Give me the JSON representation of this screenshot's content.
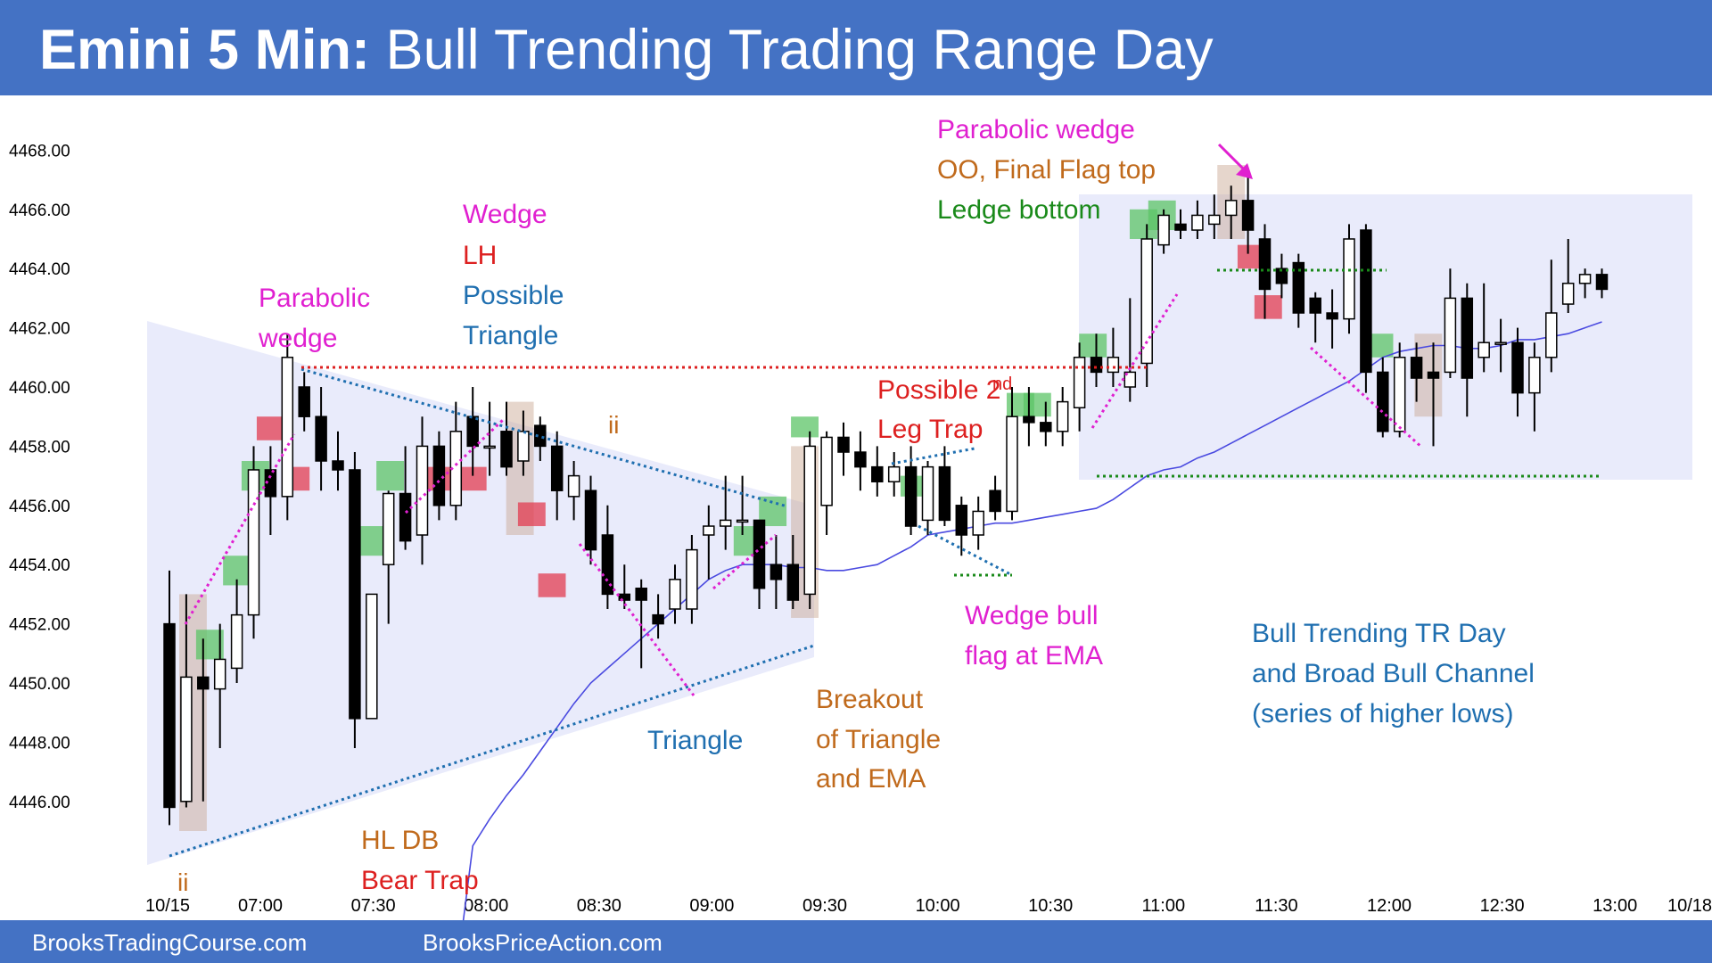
{
  "header": {
    "title_bold": "Emini 5 Min:",
    "title_rest": "Bull Trending Trading Range Day"
  },
  "footer": {
    "left": "BrooksTradingCourse.com",
    "right": "BrooksPriceAction.com"
  },
  "colors": {
    "header_bg": "#4472c4",
    "bull_bar": "#ffffff",
    "bear_bar": "#000000",
    "ema": "#4a4ae0",
    "trendline": "#1f6fb0",
    "wedge": "#e020d0",
    "resistance": "#dd2020",
    "support": "#1a8a1a",
    "bull_signal": "#5cc467",
    "bear_signal": "#e23c50",
    "pause": "#c8a58f"
  },
  "chart_data": {
    "type": "candlestick",
    "title": "Emini 5 Min: Bull Trending Trading Range Day",
    "ylim": [
      4444.8,
      4469.2
    ],
    "yticks": [
      "4446.00",
      "4448.00",
      "4450.00",
      "4452.00",
      "4454.00",
      "4456.00",
      "4458.00",
      "4460.00",
      "4462.00",
      "4464.00",
      "4466.00",
      "4468.00"
    ],
    "xticks": [
      "10/15",
      "07:00",
      "07:30",
      "08:00",
      "08:30",
      "09:00",
      "09:30",
      "10:00",
      "10:30",
      "11:00",
      "11:30",
      "12:00",
      "12:30",
      "13:00",
      "10/18"
    ],
    "bars": [
      {
        "o": 4452.0,
        "h": 4453.8,
        "l": 4445.2,
        "c": 4445.8
      },
      {
        "o": 4446.0,
        "h": 4453.0,
        "l": 4445.8,
        "c": 4450.2
      },
      {
        "o": 4450.2,
        "h": 4451.5,
        "l": 4446.0,
        "c": 4449.8
      },
      {
        "o": 4449.8,
        "h": 4452.0,
        "l": 4447.8,
        "c": 4450.8
      },
      {
        "o": 4450.5,
        "h": 4453.5,
        "l": 4450.0,
        "c": 4452.3
      },
      {
        "o": 4452.3,
        "h": 4458.0,
        "l": 4451.5,
        "c": 4457.2
      },
      {
        "o": 4457.2,
        "h": 4458.0,
        "l": 4455.0,
        "c": 4456.3
      },
      {
        "o": 4456.3,
        "h": 4461.8,
        "l": 4455.5,
        "c": 4461.0
      },
      {
        "o": 4460.0,
        "h": 4460.5,
        "l": 4458.5,
        "c": 4459.0
      },
      {
        "o": 4459.0,
        "h": 4460.0,
        "l": 4456.5,
        "c": 4457.5
      },
      {
        "o": 4457.5,
        "h": 4458.5,
        "l": 4456.5,
        "c": 4457.2
      },
      {
        "o": 4457.2,
        "h": 4457.8,
        "l": 4447.8,
        "c": 4448.8
      },
      {
        "o": 4448.8,
        "h": 4453.0,
        "l": 4448.8,
        "c": 4453.0
      },
      {
        "o": 4454.0,
        "h": 4456.5,
        "l": 4452.0,
        "c": 4456.4
      },
      {
        "o": 4456.4,
        "h": 4458.0,
        "l": 4454.5,
        "c": 4454.8
      },
      {
        "o": 4455.0,
        "h": 4459.0,
        "l": 4454.0,
        "c": 4458.0
      },
      {
        "o": 4458.0,
        "h": 4458.5,
        "l": 4455.5,
        "c": 4456.0
      },
      {
        "o": 4456.0,
        "h": 4459.5,
        "l": 4455.5,
        "c": 4458.5
      },
      {
        "o": 4459.0,
        "h": 4460.0,
        "l": 4457.0,
        "c": 4458.0
      },
      {
        "o": 4458.0,
        "h": 4459.5,
        "l": 4457.0,
        "c": 4458.0
      },
      {
        "o": 4458.5,
        "h": 4459.5,
        "l": 4457.0,
        "c": 4457.3
      },
      {
        "o": 4457.5,
        "h": 4459.2,
        "l": 4457.0,
        "c": 4458.5
      },
      {
        "o": 4458.7,
        "h": 4459.0,
        "l": 4457.5,
        "c": 4458.0
      },
      {
        "o": 4458.0,
        "h": 4458.5,
        "l": 4455.5,
        "c": 4456.5
      },
      {
        "o": 4456.3,
        "h": 4457.5,
        "l": 4455.5,
        "c": 4457.0
      },
      {
        "o": 4456.5,
        "h": 4457.0,
        "l": 4454.0,
        "c": 4454.5
      },
      {
        "o": 4455.0,
        "h": 4456.0,
        "l": 4452.5,
        "c": 4453.0
      },
      {
        "o": 4453.0,
        "h": 4454.0,
        "l": 4452.5,
        "c": 4452.8
      },
      {
        "o": 4453.2,
        "h": 4453.5,
        "l": 4450.5,
        "c": 4452.8
      },
      {
        "o": 4452.3,
        "h": 4453.0,
        "l": 4451.5,
        "c": 4452.0
      },
      {
        "o": 4452.5,
        "h": 4454.0,
        "l": 4452.0,
        "c": 4453.5
      },
      {
        "o": 4452.5,
        "h": 4455.0,
        "l": 4452.0,
        "c": 4454.5
      },
      {
        "o": 4455.0,
        "h": 4456.0,
        "l": 4453.5,
        "c": 4455.3
      },
      {
        "o": 4455.3,
        "h": 4457.0,
        "l": 4454.5,
        "c": 4455.5
      },
      {
        "o": 4455.5,
        "h": 4457.0,
        "l": 4455.0,
        "c": 4455.5
      },
      {
        "o": 4455.5,
        "h": 4455.5,
        "l": 4452.5,
        "c": 4453.2
      },
      {
        "o": 4454.0,
        "h": 4455.0,
        "l": 4452.5,
        "c": 4453.5
      },
      {
        "o": 4454.0,
        "h": 4455.0,
        "l": 4452.5,
        "c": 4452.8
      },
      {
        "o": 4453.0,
        "h": 4458.5,
        "l": 4452.5,
        "c": 4458.0
      },
      {
        "o": 4456.0,
        "h": 4458.5,
        "l": 4455.0,
        "c": 4458.3
      },
      {
        "o": 4458.3,
        "h": 4458.8,
        "l": 4457.0,
        "c": 4457.8
      },
      {
        "o": 4457.8,
        "h": 4458.5,
        "l": 4456.5,
        "c": 4457.3
      },
      {
        "o": 4457.3,
        "h": 4458.0,
        "l": 4456.3,
        "c": 4456.8
      },
      {
        "o": 4456.8,
        "h": 4457.8,
        "l": 4456.3,
        "c": 4457.3
      },
      {
        "o": 4457.3,
        "h": 4458.0,
        "l": 4455.0,
        "c": 4455.3
      },
      {
        "o": 4455.5,
        "h": 4457.5,
        "l": 4455.0,
        "c": 4457.3
      },
      {
        "o": 4457.3,
        "h": 4458.0,
        "l": 4455.3,
        "c": 4455.5
      },
      {
        "o": 4456.0,
        "h": 4456.3,
        "l": 4454.3,
        "c": 4455.0
      },
      {
        "o": 4455.0,
        "h": 4456.3,
        "l": 4454.5,
        "c": 4455.8
      },
      {
        "o": 4456.5,
        "h": 4457.0,
        "l": 4455.5,
        "c": 4455.8
      },
      {
        "o": 4455.8,
        "h": 4460.0,
        "l": 4455.5,
        "c": 4459.0
      },
      {
        "o": 4459.0,
        "h": 4460.0,
        "l": 4458.0,
        "c": 4458.8
      },
      {
        "o": 4458.8,
        "h": 4459.5,
        "l": 4458.0,
        "c": 4458.5
      },
      {
        "o": 4458.5,
        "h": 4460.0,
        "l": 4458.0,
        "c": 4459.5
      },
      {
        "o": 4459.3,
        "h": 4461.5,
        "l": 4458.5,
        "c": 4461.0
      },
      {
        "o": 4461.0,
        "h": 4461.8,
        "l": 4460.0,
        "c": 4460.5
      },
      {
        "o": 4460.5,
        "h": 4462.0,
        "l": 4460.0,
        "c": 4461.0
      },
      {
        "o": 4460.0,
        "h": 4463.0,
        "l": 4459.5,
        "c": 4460.5
      },
      {
        "o": 4460.8,
        "h": 4465.5,
        "l": 4460.0,
        "c": 4465.0
      },
      {
        "o": 4464.8,
        "h": 4466.0,
        "l": 4464.5,
        "c": 4465.8
      },
      {
        "o": 4465.5,
        "h": 4466.0,
        "l": 4465.0,
        "c": 4465.3
      },
      {
        "o": 4465.3,
        "h": 4466.3,
        "l": 4465.0,
        "c": 4465.8
      },
      {
        "o": 4465.5,
        "h": 4466.5,
        "l": 4465.0,
        "c": 4465.8
      },
      {
        "o": 4465.8,
        "h": 4466.8,
        "l": 4465.0,
        "c": 4466.3
      },
      {
        "o": 4466.3,
        "h": 4467.4,
        "l": 4464.5,
        "c": 4465.3
      },
      {
        "o": 4465.0,
        "h": 4465.5,
        "l": 4462.3,
        "c": 4463.3
      },
      {
        "o": 4464.0,
        "h": 4464.5,
        "l": 4463.0,
        "c": 4463.5
      },
      {
        "o": 4464.2,
        "h": 4464.5,
        "l": 4462.0,
        "c": 4462.5
      },
      {
        "o": 4463.0,
        "h": 4463.2,
        "l": 4461.5,
        "c": 4462.5
      },
      {
        "o": 4462.5,
        "h": 4463.3,
        "l": 4461.3,
        "c": 4462.3
      },
      {
        "o": 4462.3,
        "h": 4465.5,
        "l": 4461.8,
        "c": 4465.0
      },
      {
        "o": 4465.3,
        "h": 4465.5,
        "l": 4459.8,
        "c": 4460.5
      },
      {
        "o": 4460.5,
        "h": 4461.0,
        "l": 4458.3,
        "c": 4458.5
      },
      {
        "o": 4458.5,
        "h": 4461.5,
        "l": 4458.3,
        "c": 4461.0
      },
      {
        "o": 4461.0,
        "h": 4461.5,
        "l": 4459.5,
        "c": 4460.3
      },
      {
        "o": 4460.5,
        "h": 4461.5,
        "l": 4458.0,
        "c": 4460.3
      },
      {
        "o": 4460.5,
        "h": 4464.0,
        "l": 4460.3,
        "c": 4463.0
      },
      {
        "o": 4463.0,
        "h": 4463.5,
        "l": 4459.0,
        "c": 4460.3
      },
      {
        "o": 4461.0,
        "h": 4463.5,
        "l": 4460.5,
        "c": 4461.5
      },
      {
        "o": 4461.5,
        "h": 4462.3,
        "l": 4460.5,
        "c": 4461.5
      },
      {
        "o": 4461.5,
        "h": 4462.0,
        "l": 4459.0,
        "c": 4459.8
      },
      {
        "o": 4459.8,
        "h": 4461.5,
        "l": 4458.5,
        "c": 4461.0
      },
      {
        "o": 4461.0,
        "h": 4464.3,
        "l": 4460.5,
        "c": 4462.5
      },
      {
        "o": 4462.8,
        "h": 4465.0,
        "l": 4462.5,
        "c": 4463.5
      },
      {
        "o": 4463.5,
        "h": 4464.0,
        "l": 4463.0,
        "c": 4463.8
      },
      {
        "o": 4463.8,
        "h": 4464.0,
        "l": 4463.0,
        "c": 4463.3
      }
    ],
    "ema": [
      4440.0,
      4444.5,
      4445.4,
      4446.2,
      4446.9,
      4447.7,
      4448.5,
      4449.3,
      4450.0,
      4450.5,
      4451.0,
      4451.5,
      4452.0,
      4452.5,
      4453.0,
      4453.5,
      4453.8,
      4454.0,
      4454.0,
      4454.0,
      4453.9,
      4453.9,
      4453.8,
      4453.8,
      4453.9,
      4454.0,
      4454.3,
      4454.6,
      4455.0,
      4455.1,
      4455.2,
      4455.3,
      4455.4,
      4455.4,
      4455.5,
      4455.6,
      4455.7,
      4455.8,
      4455.9,
      4456.2,
      4456.6,
      4457.0,
      4457.2,
      4457.3,
      4457.6,
      4457.8,
      4458.1,
      4458.4,
      4458.7,
      4459.0,
      4459.3,
      4459.6,
      4459.9,
      4460.2,
      4460.6,
      4461.0,
      4461.2,
      4461.3,
      4461.4,
      4461.4,
      4461.3,
      4461.3,
      4461.4,
      4461.6,
      4461.6,
      4461.7,
      4461.8,
      4462.0,
      4462.2
    ],
    "ema_start_index": 18,
    "annotations": [
      "Parabolic",
      "wedge",
      "Wedge",
      "LH",
      "Possible",
      "Triangle",
      "ii",
      "ii",
      "Parabolic wedge",
      "OO, Final Flag top",
      "Ledge bottom",
      "Possible 2",
      "nd",
      "Leg Trap",
      "Wedge bull",
      "flag at EMA",
      "Triangle",
      "Breakout",
      "of Triangle",
      "and EMA",
      "HL DB",
      "Bear Trap",
      "Bull Trending TR Day",
      "and Broad Bull Channel",
      "(series of higher lows)"
    ]
  }
}
